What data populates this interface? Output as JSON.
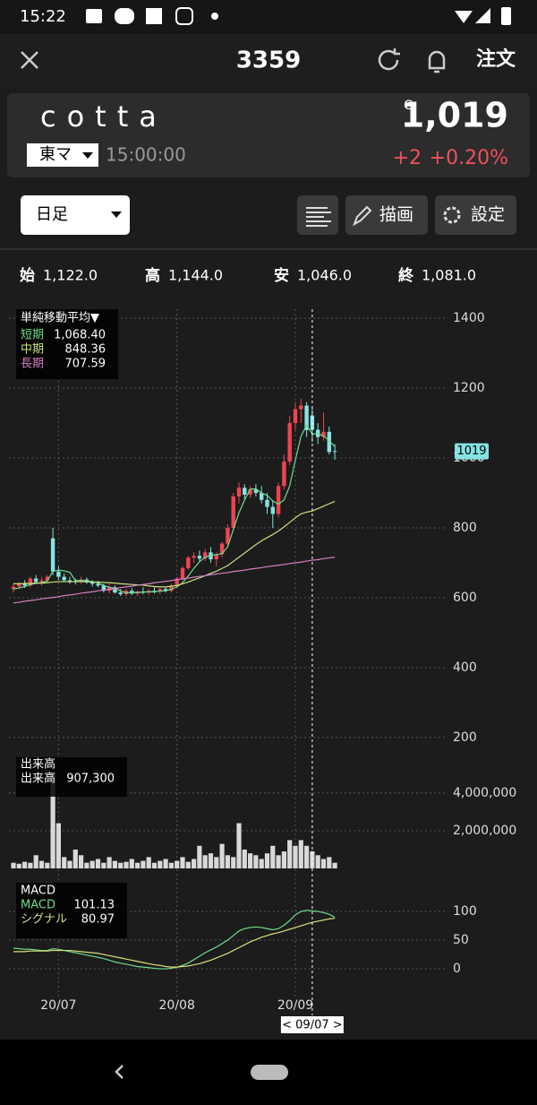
{
  "status_bar": {
    "time": "15:22"
  },
  "header": {
    "title": "3359",
    "order": "注文"
  },
  "quote": {
    "name": "cotta",
    "market": "東マ",
    "time": "15:00:00",
    "flag": "C",
    "price": "1,019",
    "change": "+2",
    "change_pct": "+0.20%"
  },
  "toolbar": {
    "period": "日足",
    "draw": "描画",
    "settings": "設定"
  },
  "ohlc": {
    "labels": [
      "始",
      "高",
      "安",
      "終"
    ],
    "values": [
      "1,122.0",
      "1,144.0",
      "1,046.0",
      "1,081.0"
    ]
  },
  "cursor_label": "< 09/07 >",
  "chart_data": [
    {
      "type": "candlestick",
      "legend_title": "単純移動平均▼",
      "categories": [
        null,
        null,
        null,
        null,
        null,
        null,
        null,
        null,
        "20/07",
        null,
        null,
        null,
        null,
        null,
        null,
        null,
        null,
        null,
        null,
        null,
        null,
        null,
        null,
        null,
        null,
        null,
        null,
        null,
        null,
        "20/08",
        null,
        null,
        null,
        null,
        null,
        null,
        null,
        null,
        null,
        null,
        null,
        null,
        null,
        null,
        null,
        null,
        null,
        null,
        null,
        null,
        "20/09",
        null,
        null,
        null,
        null,
        null,
        null,
        null
      ],
      "open": [
        625,
        632,
        640,
        635,
        655,
        645,
        650,
        770,
        675,
        660,
        650,
        648,
        645,
        652,
        644,
        640,
        635,
        620,
        630,
        615,
        610,
        620,
        612,
        618,
        615,
        620,
        618,
        625,
        620,
        635,
        655,
        685,
        715,
        720,
        712,
        730,
        710,
        725,
        755,
        800,
        890,
        915,
        895,
        910,
        900,
        880,
        860,
        840,
        920,
        990,
        1100,
        1140,
        1150,
        1122,
        1081,
        1060,
        1075,
        1020
      ],
      "high": [
        640,
        645,
        650,
        660,
        665,
        660,
        665,
        800,
        690,
        670,
        660,
        655,
        660,
        658,
        650,
        648,
        640,
        640,
        635,
        625,
        625,
        628,
        620,
        630,
        625,
        630,
        628,
        632,
        640,
        660,
        690,
        720,
        730,
        735,
        740,
        745,
        730,
        760,
        810,
        900,
        930,
        925,
        920,
        925,
        920,
        900,
        880,
        930,
        1010,
        1120,
        1160,
        1170,
        1160,
        1144,
        1100,
        1130,
        1090,
        1040
      ],
      "low": [
        615,
        625,
        628,
        630,
        640,
        635,
        645,
        665,
        650,
        645,
        640,
        638,
        640,
        640,
        632,
        630,
        615,
        612,
        612,
        605,
        605,
        608,
        605,
        610,
        608,
        612,
        610,
        615,
        615,
        630,
        650,
        680,
        700,
        705,
        705,
        700,
        690,
        715,
        745,
        790,
        870,
        880,
        885,
        890,
        870,
        840,
        800,
        830,
        910,
        980,
        1080,
        1100,
        1060,
        1046,
        1040,
        1050,
        1010,
        995
      ],
      "close": [
        632,
        640,
        635,
        655,
        645,
        650,
        660,
        675,
        660,
        650,
        648,
        645,
        652,
        644,
        640,
        635,
        620,
        630,
        615,
        610,
        620,
        612,
        618,
        615,
        620,
        618,
        625,
        620,
        635,
        655,
        685,
        715,
        720,
        712,
        730,
        710,
        725,
        755,
        800,
        890,
        915,
        895,
        910,
        900,
        880,
        860,
        840,
        920,
        990,
        1100,
        1140,
        1150,
        1080,
        1081,
        1060,
        1075,
        1017,
        1019
      ],
      "up_color": "#ef4352",
      "down_color": "#86e3e3",
      "series": [
        {
          "name": "短期",
          "color": "#6fdc8c",
          "value_label": "1,068.40",
          "values": [
            625,
            628,
            632,
            638,
            641,
            643,
            648,
            676,
            679,
            677,
            673,
            649,
            650,
            648,
            646,
            643,
            635,
            630,
            627,
            620,
            614,
            615,
            615,
            616,
            617,
            617,
            619,
            620,
            624,
            631,
            643,
            662,
            684,
            703,
            716,
            722,
            723,
            726,
            746,
            795,
            843,
            880,
            911,
            912,
            900,
            893,
            877,
            868,
            880,
            920,
            994,
            1062,
            1094,
            1068.4,
            1070,
            1063,
            1050,
            1032
          ]
        },
        {
          "name": "中期",
          "color": "#c9e27a",
          "value_label": "848.36",
          "values": [
            640,
            640,
            641,
            641,
            642,
            642,
            643,
            645,
            646,
            646,
            646,
            646,
            646,
            646,
            645,
            645,
            644,
            643,
            642,
            640,
            639,
            638,
            637,
            636,
            634,
            632,
            631,
            631,
            633,
            635,
            640,
            645,
            651,
            657,
            663,
            670,
            676,
            684,
            692,
            704,
            716,
            728,
            740,
            752,
            763,
            772,
            781,
            791,
            803,
            816,
            829,
            840,
            845,
            848.36,
            855,
            862,
            869,
            876
          ]
        },
        {
          "name": "長期",
          "color": "#d67fc2",
          "value_label": "707.59",
          "values": [
            585,
            587,
            590,
            592,
            594,
            597,
            599,
            601,
            603,
            606,
            608,
            610,
            613,
            615,
            617,
            620,
            622,
            624,
            626,
            629,
            631,
            633,
            636,
            638,
            640,
            643,
            645,
            647,
            649,
            652,
            654,
            656,
            659,
            661,
            663,
            666,
            668,
            670,
            672,
            675,
            677,
            679,
            682,
            684,
            686,
            689,
            691,
            693,
            695,
            698,
            700,
            702,
            705,
            707.59,
            709,
            712,
            714,
            716
          ]
        }
      ],
      "last_price_label": {
        "value": 1019,
        "label": "1019"
      },
      "ylim": [
        169,
        1426
      ],
      "yticks": [
        200,
        400,
        600,
        800,
        1000,
        1200,
        1400
      ],
      "grid": true
    },
    {
      "type": "bar",
      "title": "出来高",
      "legend_label": "出来高",
      "legend_value": "907,300",
      "color": "#d9d9d9",
      "values": [
        300000,
        250000,
        350000,
        300000,
        700000,
        400000,
        300000,
        5100000,
        2400000,
        600000,
        400000,
        1000000,
        700000,
        300000,
        400000,
        500000,
        300000,
        600000,
        400000,
        300000,
        350000,
        500000,
        300000,
        400000,
        600000,
        300000,
        400000,
        500000,
        300000,
        400000,
        600000,
        350000,
        500000,
        1200000,
        700000,
        800000,
        600000,
        1300000,
        700000,
        600000,
        2400000,
        1000000,
        800000,
        700000,
        500000,
        800000,
        1200000,
        700000,
        900000,
        1500000,
        1200000,
        1500000,
        1200000,
        907300,
        700000,
        500000,
        600000,
        300000
      ],
      "ylim": [
        0,
        5900000
      ],
      "yticks": [
        {
          "value": 2000000,
          "label": "2,000,000"
        },
        {
          "value": 4000000,
          "label": "4,000,000"
        }
      ],
      "grid": true
    },
    {
      "type": "line",
      "title": "MACD",
      "series": [
        {
          "name": "MACD",
          "color": "#6fdc8c",
          "value_label": "101.13",
          "values": [
            36,
            35,
            34,
            34,
            33,
            32,
            32,
            35,
            34,
            32,
            30,
            28,
            26,
            24,
            22,
            20,
            18,
            15,
            12,
            10,
            8,
            6,
            4,
            3,
            2,
            1,
            0,
            0,
            1,
            3,
            6,
            10,
            16,
            22,
            28,
            33,
            38,
            44,
            50,
            58,
            66,
            70,
            72,
            73,
            72,
            70,
            68,
            70,
            76,
            84,
            94,
            100,
            102,
            101.13,
            100,
            98,
            95,
            90
          ]
        },
        {
          "name": "シグナル",
          "color": "#d6e07a",
          "value_label": "80.97",
          "values": [
            30,
            30,
            30,
            31,
            31,
            31,
            31,
            32,
            32,
            32,
            32,
            31,
            30,
            29,
            28,
            27,
            25,
            23,
            21,
            19,
            17,
            15,
            13,
            11,
            9,
            7,
            6,
            4,
            3,
            3,
            4,
            5,
            7,
            9,
            12,
            15,
            19,
            23,
            27,
            32,
            37,
            42,
            47,
            51,
            55,
            58,
            61,
            63,
            66,
            69,
            72,
            75,
            78,
            80.97,
            83,
            85,
            87,
            88
          ]
        }
      ],
      "ylim": [
        -53,
        150
      ],
      "yticks": [
        0,
        50,
        100
      ],
      "grid": true
    }
  ]
}
